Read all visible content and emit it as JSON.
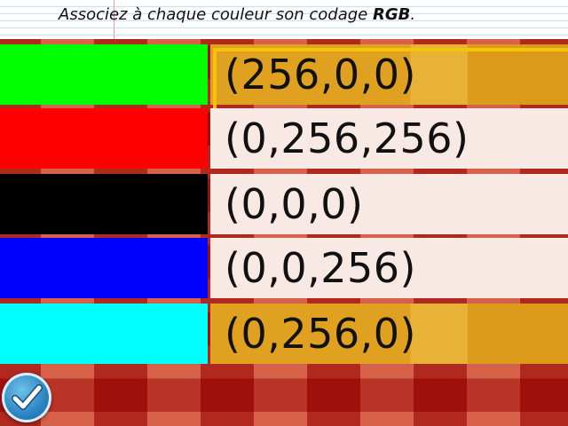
{
  "header": {
    "instruction_prefix": "Associez à chaque couleur son codage ",
    "instruction_bold": "RGB",
    "instruction_suffix": "."
  },
  "swatches": [
    {
      "color": "#00ff00",
      "icon": "green-swatch"
    },
    {
      "color": "#ff0000",
      "icon": "red-swatch"
    },
    {
      "color": "#000000",
      "icon": "black-swatch"
    },
    {
      "color": "#0000ff",
      "icon": "blue-swatch"
    },
    {
      "color": "#00ffff",
      "icon": "cyan-swatch"
    }
  ],
  "codes": [
    {
      "label": "(256,0,0)",
      "style": "gold",
      "selected": true
    },
    {
      "label": "(0,256,256)",
      "style": "light",
      "selected": false
    },
    {
      "label": "(0,0,0)",
      "style": "light",
      "selected": false
    },
    {
      "label": "(0,0,256)",
      "style": "light",
      "selected": false
    },
    {
      "label": "(0,256,0)",
      "style": "gold",
      "selected": false
    }
  ],
  "validate_button": {
    "icon": "checkmark-icon"
  },
  "colors": {
    "selection_border": "#f4c40a",
    "gold_card": "#e0a020",
    "light_card": "#f8e9e4",
    "button_blue": "#2b86c2"
  }
}
